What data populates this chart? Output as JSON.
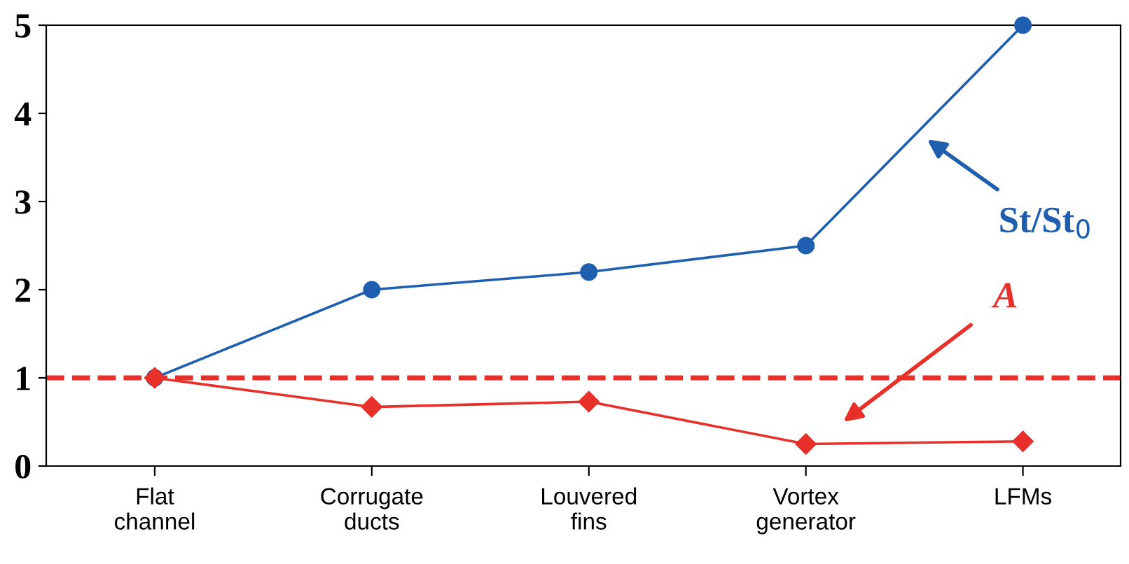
{
  "chart_data": {
    "type": "line",
    "categories": [
      "Flat\nchannel",
      "Corrugate\nducts",
      "Louvered\nfins",
      "Vortex\ngenerator",
      "LFMs"
    ],
    "series": [
      {
        "color": "#1f5fb0",
        "values": [
          1,
          2,
          2.2,
          2.5,
          5
        ],
        "marker": "circle"
      },
      {
        "color": "#e8302a",
        "values": [
          1,
          0.67,
          0.73,
          0.25,
          0.28
        ],
        "marker": "diamond"
      }
    ],
    "ylim": [
      0,
      5
    ],
    "yticks": [
      0,
      1,
      2,
      3,
      4,
      5
    ],
    "grid": false,
    "legend": false,
    "ref_lines": [
      {
        "axis": "y",
        "value": 1,
        "color": "#e8302a",
        "line_style": "dashed"
      }
    ],
    "annotations": [
      "St/St$_{0}$",
      "A"
    ]
  }
}
